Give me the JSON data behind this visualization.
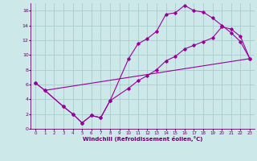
{
  "bg_color": "#cce8e8",
  "line_color": "#990099",
  "grid_color": "#aacccc",
  "xlabel": "Windchill (Refroidissement éolien,°C)",
  "xlabel_color": "#660066",
  "tick_color": "#660066",
  "xlim": [
    -0.5,
    23.5
  ],
  "ylim": [
    0,
    17
  ],
  "xticks": [
    0,
    1,
    2,
    3,
    4,
    5,
    6,
    7,
    8,
    9,
    10,
    11,
    12,
    13,
    14,
    15,
    16,
    17,
    18,
    19,
    20,
    21,
    22,
    23
  ],
  "yticks": [
    0,
    2,
    4,
    6,
    8,
    10,
    12,
    14,
    16
  ],
  "series1_x": [
    0,
    1,
    3,
    4,
    5,
    6,
    7,
    8,
    10,
    11,
    12,
    13,
    14,
    15,
    16,
    17,
    18,
    19,
    20,
    21,
    22,
    23
  ],
  "series1_y": [
    6.2,
    5.2,
    3.0,
    2.0,
    0.8,
    1.8,
    1.5,
    3.8,
    9.5,
    11.5,
    12.2,
    13.2,
    15.5,
    15.7,
    16.7,
    16.0,
    15.8,
    15.0,
    14.0,
    13.0,
    11.8,
    9.5
  ],
  "series2_x": [
    0,
    1,
    3,
    4,
    5,
    6,
    7,
    8,
    10,
    11,
    12,
    13,
    14,
    15,
    16,
    17,
    18,
    19,
    20,
    21,
    22,
    23
  ],
  "series2_y": [
    6.2,
    5.2,
    3.0,
    2.0,
    0.8,
    1.8,
    1.5,
    3.8,
    5.5,
    6.5,
    7.2,
    8.0,
    9.2,
    9.8,
    10.8,
    11.3,
    11.8,
    12.3,
    13.8,
    13.5,
    12.5,
    9.5
  ],
  "series3_x": [
    1,
    23
  ],
  "series3_y": [
    5.2,
    9.5
  ]
}
